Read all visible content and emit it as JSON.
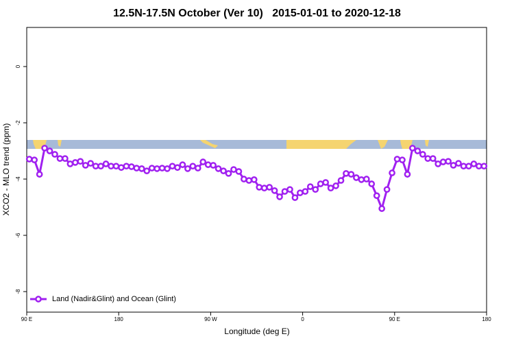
{
  "chart_data": {
    "type": "line",
    "title": "12.5N-17.5N October (Ver 10)   2015-01-01 to 2020-12-18",
    "x_label": "Longitude (deg E)",
    "y_label": "XCO2 - MLO trend (ppm)",
    "xlim": [
      90,
      540
    ],
    "xticks": [
      {
        "value": 90,
        "label": "90 E"
      },
      {
        "value": 180,
        "label": "180"
      },
      {
        "value": 270,
        "label": "90 W"
      },
      {
        "value": 360,
        "label": "0"
      },
      {
        "value": 450,
        "label": "90 E"
      },
      {
        "value": 540,
        "label": "180"
      }
    ],
    "ylim": [
      -8.73,
      1.39
    ],
    "yticks": [
      0,
      -2,
      -4,
      -6,
      -8
    ],
    "legend": "bottom-left",
    "x": [
      92.5,
      97.5,
      102.5,
      107.5,
      112.5,
      117.5,
      122.5,
      127.5,
      132.5,
      137.5,
      142.5,
      147.5,
      152.5,
      157.5,
      162.5,
      167.5,
      172.5,
      177.5,
      182.5,
      187.5,
      192.5,
      197.5,
      202.5,
      207.5,
      212.5,
      217.5,
      222.5,
      227.5,
      232.5,
      237.5,
      242.5,
      247.5,
      252.5,
      257.5,
      262.5,
      267.5,
      272.5,
      277.5,
      282.5,
      287.5,
      292.5,
      297.5,
      302.5,
      307.5,
      312.5,
      317.5,
      322.5,
      327.5,
      332.5,
      337.5,
      342.5,
      347.5,
      352.5,
      357.5,
      362.5,
      367.5,
      372.5,
      377.5,
      382.5,
      387.5,
      392.5,
      397.5,
      402.5,
      407.5,
      412.5,
      417.5,
      422.5,
      427.5,
      432.5,
      437.5,
      442.5,
      447.5,
      452.5,
      457.5,
      462.5,
      467.5,
      472.5,
      477.5,
      482.5,
      487.5,
      492.5,
      497.5,
      502.5,
      507.5,
      512.5,
      517.5,
      522.5,
      527.5,
      532.5,
      537.5
    ],
    "series": [
      {
        "name": "Land (Nadir&Glint) and Ocean (Glint)",
        "color": "#a020f0",
        "values": [
          -3.29,
          -3.32,
          -3.83,
          -2.9,
          -3.0,
          -3.12,
          -3.27,
          -3.27,
          -3.46,
          -3.41,
          -3.37,
          -3.51,
          -3.44,
          -3.54,
          -3.54,
          -3.46,
          -3.54,
          -3.54,
          -3.59,
          -3.54,
          -3.56,
          -3.61,
          -3.63,
          -3.71,
          -3.61,
          -3.63,
          -3.61,
          -3.63,
          -3.54,
          -3.59,
          -3.49,
          -3.63,
          -3.54,
          -3.61,
          -3.39,
          -3.49,
          -3.51,
          -3.63,
          -3.71,
          -3.8,
          -3.66,
          -3.73,
          -4.0,
          -4.05,
          -4.02,
          -4.29,
          -4.32,
          -4.29,
          -4.41,
          -4.63,
          -4.44,
          -4.37,
          -4.66,
          -4.49,
          -4.44,
          -4.27,
          -4.37,
          -4.17,
          -4.12,
          -4.32,
          -4.24,
          -4.05,
          -3.8,
          -3.83,
          -3.95,
          -4.02,
          -4.0,
          -4.17,
          -4.59,
          -5.05,
          -4.37,
          -3.78,
          -3.29,
          -3.32,
          -3.83,
          -2.9,
          -3.0,
          -3.12,
          -3.27,
          -3.27,
          -3.46,
          -3.39,
          -3.37,
          -3.51,
          -3.44,
          -3.54,
          -3.54,
          -3.46,
          -3.54,
          -3.54
        ]
      }
    ]
  }
}
